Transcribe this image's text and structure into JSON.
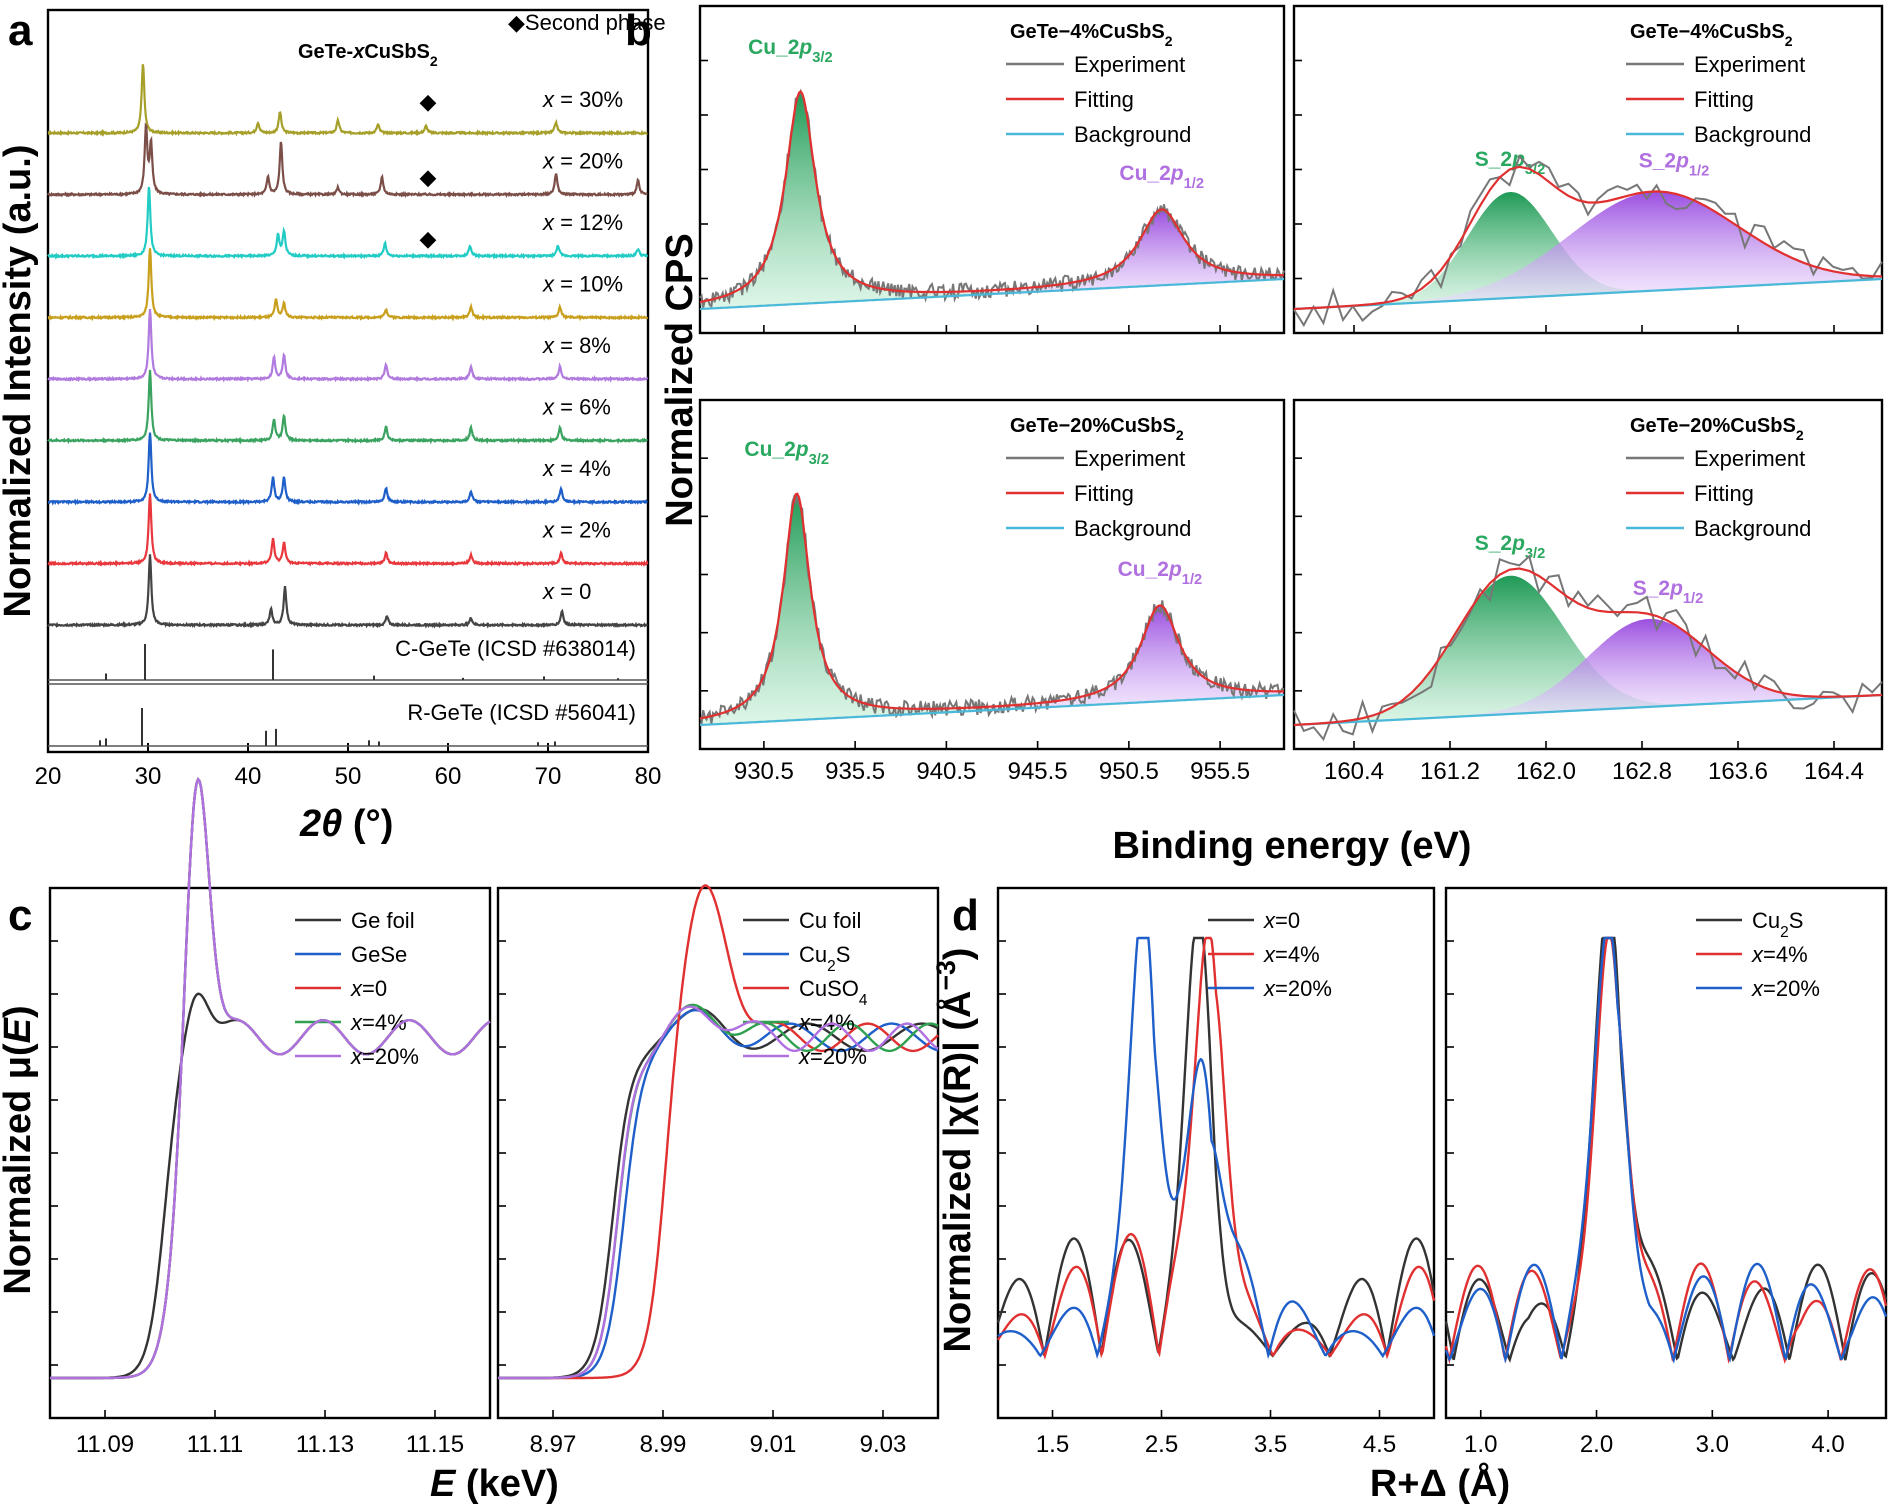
{
  "figure": {
    "panel_letters": [
      "a",
      "b",
      "c",
      "d"
    ],
    "second_phase_label": "◆Second phase"
  },
  "chart_data": [
    {
      "id": "a",
      "type": "line",
      "title_parts": {
        "pre": "GeTe-",
        "x": "x",
        "post": "CuSbS",
        "sub": "2"
      },
      "xlabel_parts": {
        "main": "2θ",
        "unit": " (°)"
      },
      "ylabel": "Normalized Intensity (a.u.)",
      "xlim": [
        20,
        80
      ],
      "xticks": [
        20,
        30,
        40,
        50,
        60,
        70,
        80
      ],
      "series": [
        {
          "label": "= 30%",
          "color": "#a6a02a",
          "peaks": [
            [
              29.5,
              1.0
            ],
            [
              41,
              0.15
            ],
            [
              43.2,
              0.3
            ],
            [
              49,
              0.18
            ],
            [
              53,
              0.12
            ],
            [
              57.8,
              0.1
            ],
            [
              70.8,
              0.15
            ]
          ],
          "second_phase_at": 58
        },
        {
          "label": "= 20%",
          "color": "#7b4e48",
          "peaks": [
            [
              29.8,
              0.95
            ],
            [
              30.3,
              0.7
            ],
            [
              42,
              0.25
            ],
            [
              43.3,
              0.75
            ],
            [
              49,
              0.1
            ],
            [
              53.4,
              0.25
            ],
            [
              70.8,
              0.3
            ],
            [
              79,
              0.2
            ]
          ],
          "second_phase_at": 58
        },
        {
          "label": "= 12%",
          "color": "#22ccc4",
          "peaks": [
            [
              30.1,
              1.0
            ],
            [
              43,
              0.3
            ],
            [
              43.6,
              0.35
            ],
            [
              53.7,
              0.18
            ],
            [
              62.2,
              0.15
            ],
            [
              71,
              0.15
            ],
            [
              79,
              0.1
            ]
          ],
          "second_phase_at": 58
        },
        {
          "label": "= 10%",
          "color": "#c9a01e",
          "peaks": [
            [
              30.2,
              1.0
            ],
            [
              42.8,
              0.25
            ],
            [
              43.6,
              0.2
            ],
            [
              53.8,
              0.12
            ],
            [
              62.3,
              0.15
            ],
            [
              71.2,
              0.15
            ]
          ]
        },
        {
          "label": "= 8%",
          "color": "#b07ade",
          "peaks": [
            [
              30.2,
              1.0
            ],
            [
              42.6,
              0.3
            ],
            [
              43.6,
              0.35
            ],
            [
              53.8,
              0.2
            ],
            [
              62.3,
              0.18
            ],
            [
              71.2,
              0.18
            ]
          ]
        },
        {
          "label": "= 6%",
          "color": "#3aa360",
          "peaks": [
            [
              30.2,
              1.0
            ],
            [
              42.6,
              0.3
            ],
            [
              43.6,
              0.35
            ],
            [
              53.8,
              0.2
            ],
            [
              62.3,
              0.18
            ],
            [
              71.2,
              0.18
            ]
          ]
        },
        {
          "label": "= 4%",
          "color": "#1f5fc9",
          "peaks": [
            [
              30.2,
              1.0
            ],
            [
              42.5,
              0.35
            ],
            [
              43.6,
              0.35
            ],
            [
              53.8,
              0.2
            ],
            [
              62.3,
              0.15
            ],
            [
              71.3,
              0.2
            ]
          ]
        },
        {
          "label": "= 2%",
          "color": "#e8383d",
          "peaks": [
            [
              30.2,
              1.0
            ],
            [
              42.5,
              0.35
            ],
            [
              43.6,
              0.3
            ],
            [
              53.8,
              0.15
            ],
            [
              62.3,
              0.12
            ],
            [
              71.3,
              0.15
            ]
          ]
        },
        {
          "label": "= 0",
          "color": "#444444",
          "peaks": [
            [
              30.2,
              1.0
            ],
            [
              42.3,
              0.22
            ],
            [
              43.7,
              0.55
            ],
            [
              53.9,
              0.12
            ],
            [
              62.3,
              0.1
            ],
            [
              71.4,
              0.2
            ]
          ]
        }
      ],
      "references": [
        {
          "label": "C-GeTe (ICSD #638014)",
          "sticks": [
            [
              25.8,
              0.18
            ],
            [
              29.7,
              1.0
            ],
            [
              42.5,
              0.85
            ],
            [
              52.6,
              0.12
            ],
            [
              61.5,
              0.06
            ],
            [
              69.6,
              0.1
            ],
            [
              77,
              0.05
            ]
          ]
        },
        {
          "label": "R-GeTe (ICSD #56041)",
          "sticks": [
            [
              25.2,
              0.15
            ],
            [
              25.8,
              0.2
            ],
            [
              29.4,
              1.0
            ],
            [
              41.8,
              0.4
            ],
            [
              42.8,
              0.45
            ],
            [
              52.1,
              0.15
            ],
            [
              53.1,
              0.12
            ],
            [
              69,
              0.1
            ],
            [
              70.7,
              0.12
            ]
          ]
        }
      ]
    },
    {
      "id": "b",
      "type": "line",
      "ylabel": "Normalized CPS",
      "xlabel": "Binding energy (eV)",
      "legend": [
        "Experiment",
        "Fitting",
        "Background"
      ],
      "legend_colors": [
        "#777777",
        "#e03030",
        "#4ab8d8"
      ],
      "subplots": [
        {
          "title": "GeTe−4%CuSbS",
          "title_sub": "2",
          "xlim": [
            927,
            959
          ],
          "peaks": [
            {
              "label": "Cu_2p",
              "label_sub": "3/2",
              "center": 932.5,
              "height": 0.9,
              "width": 1.0,
              "color": "green"
            },
            {
              "label": "Cu_2p",
              "label_sub": "1/2",
              "center": 952.3,
              "height": 0.32,
              "width": 1.5,
              "color": "purple"
            }
          ],
          "xticks": []
        },
        {
          "title": "GeTe−4%CuSbS",
          "title_sub": "2",
          "xlim": [
            159.9,
            164.8
          ],
          "peaks": [
            {
              "label": "S_2p",
              "label_sub": "3/2",
              "center": 161.7,
              "height": 0.45,
              "width": 0.35,
              "color": "green"
            },
            {
              "label": "S_2p",
              "label_sub": "1/2",
              "center": 162.9,
              "height": 0.42,
              "width": 0.7,
              "color": "purple"
            }
          ],
          "xticks": []
        },
        {
          "title": "GeTe−20%CuSbS",
          "title_sub": "2",
          "xlim": [
            927,
            959
          ],
          "peaks": [
            {
              "label": "Cu_2p",
              "label_sub": "3/2",
              "center": 932.3,
              "height": 0.9,
              "width": 0.9,
              "color": "green"
            },
            {
              "label": "Cu_2p",
              "label_sub": "1/2",
              "center": 952.2,
              "height": 0.38,
              "width": 1.3,
              "color": "purple"
            }
          ],
          "xticks": [
            930.5,
            935.5,
            940.5,
            945.5,
            950.5,
            955.5
          ]
        },
        {
          "title": "GeTe−20%CuSbS",
          "title_sub": "2",
          "xlim": [
            159.9,
            164.8
          ],
          "peaks": [
            {
              "label": "S_2p",
              "label_sub": "3/2",
              "center": 161.7,
              "height": 0.55,
              "width": 0.45,
              "color": "green"
            },
            {
              "label": "S_2p",
              "label_sub": "1/2",
              "center": 162.85,
              "height": 0.35,
              "width": 0.5,
              "color": "purple"
            }
          ],
          "xticks": [
            160.4,
            161.2,
            162.0,
            162.8,
            163.6,
            164.4
          ]
        }
      ]
    },
    {
      "id": "c",
      "type": "line",
      "ylabel_parts": {
        "pre": "Normalized μ(",
        "var": "E",
        "post": ")"
      },
      "xlabel_parts": {
        "var": "E",
        "post": " (keV)"
      },
      "subplots": [
        {
          "xlim": [
            11.08,
            11.16
          ],
          "xticks": [
            11.09,
            11.11,
            11.13,
            11.15
          ],
          "legend": [
            {
              "name": "Ge foil",
              "color": "#333333"
            },
            {
              "name": "GeSe",
              "color": "#1f5fc9"
            },
            {
              "name": "=0",
              "pre": "x",
              "color": "#e03030"
            },
            {
              "name": "=4%",
              "pre": "x",
              "color": "#2fa050"
            },
            {
              "name": "=20%",
              "pre": "x",
              "color": "#b070e0"
            }
          ]
        },
        {
          "xlim": [
            8.96,
            9.04
          ],
          "xticks": [
            8.97,
            8.99,
            9.01,
            9.03
          ],
          "legend": [
            {
              "name": "Cu foil",
              "color": "#333333"
            },
            {
              "name": "Cu",
              "sub": "2",
              "post": "S",
              "color": "#1f5fc9"
            },
            {
              "name": "CuSO",
              "sub": "4",
              "color": "#e03030"
            },
            {
              "name": "=4%",
              "pre": "x",
              "color": "#2fa050"
            },
            {
              "name": "=20%",
              "pre": "x",
              "color": "#b070e0"
            }
          ]
        }
      ]
    },
    {
      "id": "d",
      "type": "line",
      "ylabel_parts": {
        "pre": "Normalized |χ(R)| (Å",
        "sup": "−3",
        "post": ")"
      },
      "xlabel": "R+Δ (Å)",
      "subplots": [
        {
          "xlim": [
            1.0,
            5.0
          ],
          "xticks": [
            1.5,
            2.5,
            3.5,
            4.5
          ],
          "legend": [
            {
              "name": "=0",
              "pre": "x",
              "color": "#333333"
            },
            {
              "name": "=4%",
              "pre": "x",
              "color": "#e03030"
            },
            {
              "name": "=20%",
              "pre": "x",
              "color": "#1f5fc9"
            }
          ]
        },
        {
          "xlim": [
            0.7,
            4.5
          ],
          "xticks": [
            1.0,
            2.0,
            3.0,
            4.0
          ],
          "legend": [
            {
              "name": "Cu",
              "sub": "2",
              "post": "S",
              "color": "#333333"
            },
            {
              "name": "=4%",
              "pre": "x",
              "color": "#e03030"
            },
            {
              "name": "=20%",
              "pre": "x",
              "color": "#1f5fc9"
            }
          ]
        }
      ]
    }
  ]
}
